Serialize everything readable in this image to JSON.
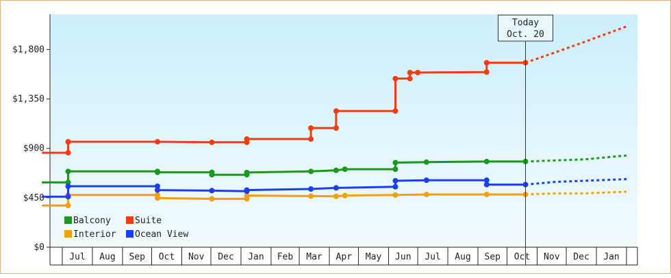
{
  "chart_data": {
    "type": "line",
    "title": "",
    "xlabel": "",
    "ylabel": "",
    "y_ticks": [
      "$0",
      "$450",
      "$900",
      "$1,350",
      "$1,800"
    ],
    "y_tick_values": [
      0,
      450,
      900,
      1350,
      1800
    ],
    "ylim": [
      0,
      2120
    ],
    "x_start": "2023-07-01",
    "x_end": "2025-02-01",
    "x_tick_labels": [
      "Jul",
      "Aug",
      "Sep",
      "Oct",
      "Nov",
      "Dec",
      "Jan",
      "Feb",
      "Mar",
      "Apr",
      "May",
      "Jun",
      "Jul",
      "Aug",
      "Sep",
      "Oct",
      "Nov",
      "Dec",
      "Jan"
    ],
    "x_tick_dates": [
      "2023-07-01",
      "2023-08-01",
      "2023-09-01",
      "2023-10-01",
      "2023-11-01",
      "2023-12-01",
      "2024-01-01",
      "2024-02-01",
      "2024-03-01",
      "2024-04-01",
      "2024-05-01",
      "2024-06-01",
      "2024-07-01",
      "2024-08-01",
      "2024-09-01",
      "2024-10-01",
      "2024-11-01",
      "2024-12-01",
      "2025-01-01"
    ],
    "today": {
      "label_line1": "Today",
      "label_line2": "Oct. 20",
      "date": "2024-10-20"
    },
    "legend": {
      "placement": "bottom-left",
      "items": [
        "Balcony",
        "Suite",
        "Interior",
        "Ocean View"
      ]
    },
    "grid": false,
    "background": {
      "top": "#cdeefa",
      "bottom": "#f2fbfe"
    },
    "series": [
      {
        "name": "Balcony",
        "color": "#1a9a1a",
        "points": [
          [
            "2023-06-10",
            590
          ],
          [
            "2023-07-07",
            590
          ],
          [
            "2023-07-07",
            690
          ],
          [
            "2023-10-07",
            690
          ],
          [
            "2023-10-07",
            682
          ],
          [
            "2023-12-02",
            682
          ],
          [
            "2023-12-02",
            660
          ],
          [
            "2024-01-07",
            660
          ],
          [
            "2024-01-07",
            680
          ],
          [
            "2024-03-13",
            690
          ],
          [
            "2024-04-08",
            700
          ],
          [
            "2024-04-17",
            710
          ],
          [
            "2024-06-08",
            710
          ],
          [
            "2024-06-08",
            770
          ],
          [
            "2024-07-10",
            775
          ],
          [
            "2024-09-10",
            780
          ],
          [
            "2024-10-20",
            780
          ]
        ],
        "forecast": [
          [
            "2024-10-20",
            780
          ],
          [
            "2024-11-20",
            790
          ],
          [
            "2024-12-20",
            800
          ],
          [
            "2025-02-01",
            835
          ]
        ]
      },
      {
        "name": "Suite",
        "color": "#ee3e12",
        "points": [
          [
            "2023-06-10",
            860
          ],
          [
            "2023-07-07",
            860
          ],
          [
            "2023-07-07",
            960
          ],
          [
            "2023-10-07",
            960
          ],
          [
            "2023-12-02",
            955
          ],
          [
            "2024-01-07",
            955
          ],
          [
            "2024-01-07",
            985
          ],
          [
            "2024-03-13",
            985
          ],
          [
            "2024-03-13",
            1085
          ],
          [
            "2024-04-08",
            1085
          ],
          [
            "2024-04-08",
            1240
          ],
          [
            "2024-06-08",
            1240
          ],
          [
            "2024-06-08",
            1535
          ],
          [
            "2024-06-23",
            1535
          ],
          [
            "2024-06-23",
            1590
          ],
          [
            "2024-07-01",
            1590
          ],
          [
            "2024-09-10",
            1595
          ],
          [
            "2024-09-10",
            1680
          ],
          [
            "2024-10-20",
            1680
          ]
        ],
        "forecast": [
          [
            "2024-10-20",
            1680
          ],
          [
            "2024-11-20",
            1775
          ],
          [
            "2024-12-20",
            1870
          ],
          [
            "2025-02-01",
            2010
          ]
        ]
      },
      {
        "name": "Interior",
        "color": "#f5a00a",
        "points": [
          [
            "2023-06-10",
            380
          ],
          [
            "2023-07-07",
            380
          ],
          [
            "2023-07-07",
            475
          ],
          [
            "2023-10-07",
            475
          ],
          [
            "2023-10-07",
            448
          ],
          [
            "2023-12-02",
            440
          ],
          [
            "2024-01-07",
            440
          ],
          [
            "2024-01-07",
            470
          ],
          [
            "2024-03-13",
            465
          ],
          [
            "2024-04-08",
            463
          ],
          [
            "2024-04-17",
            470
          ],
          [
            "2024-06-08",
            475
          ],
          [
            "2024-07-10",
            480
          ],
          [
            "2024-09-10",
            480
          ],
          [
            "2024-10-20",
            480
          ]
        ],
        "forecast": [
          [
            "2024-10-20",
            480
          ],
          [
            "2024-11-20",
            490
          ],
          [
            "2024-12-20",
            490
          ],
          [
            "2025-02-01",
            505
          ]
        ]
      },
      {
        "name": "Ocean View",
        "color": "#1a3ef0",
        "points": [
          [
            "2023-06-10",
            460
          ],
          [
            "2023-07-07",
            460
          ],
          [
            "2023-07-07",
            555
          ],
          [
            "2023-10-07",
            555
          ],
          [
            "2023-10-07",
            520
          ],
          [
            "2023-12-02",
            515
          ],
          [
            "2024-01-07",
            510
          ],
          [
            "2024-01-07",
            520
          ],
          [
            "2024-03-13",
            530
          ],
          [
            "2024-04-08",
            540
          ],
          [
            "2024-06-08",
            550
          ],
          [
            "2024-06-08",
            605
          ],
          [
            "2024-07-10",
            610
          ],
          [
            "2024-09-10",
            610
          ],
          [
            "2024-09-10",
            570
          ],
          [
            "2024-10-20",
            570
          ]
        ],
        "forecast": [
          [
            "2024-10-20",
            570
          ],
          [
            "2024-11-20",
            595
          ],
          [
            "2024-12-20",
            605
          ],
          [
            "2025-02-01",
            620
          ]
        ]
      }
    ]
  }
}
